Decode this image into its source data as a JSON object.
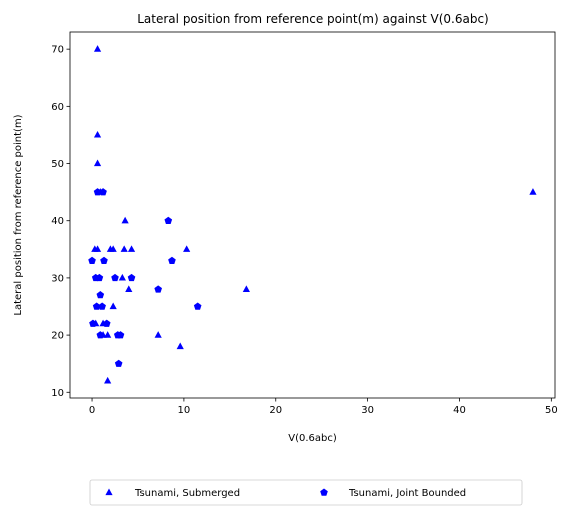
{
  "chart_data": {
    "type": "scatter",
    "title": "Lateral position from reference point(m) against V(0.6abc)",
    "xlabel": "V(0.6abc)",
    "ylabel": "Lateral position from reference point(m)",
    "xlim": [
      -2.4,
      50.4
    ],
    "ylim": [
      9.0,
      73.0
    ],
    "xticks": [
      0,
      10,
      20,
      30,
      40,
      50
    ],
    "yticks": [
      10,
      20,
      30,
      40,
      50,
      60,
      70
    ],
    "grid": false,
    "legend_position": "bottom-center, below the axes",
    "marker_color": "#0000ff",
    "series": [
      {
        "name": "Tsunami, Submerged",
        "marker": "triangle",
        "points": [
          [
            0.6,
            70
          ],
          [
            0.6,
            55
          ],
          [
            0.6,
            50
          ],
          [
            0.6,
            35
          ],
          [
            0.3,
            35
          ],
          [
            0.9,
            45
          ],
          [
            0.4,
            22
          ],
          [
            1.2,
            20
          ],
          [
            1.7,
            20
          ],
          [
            1.7,
            12
          ],
          [
            1.2,
            22
          ],
          [
            2.0,
            35
          ],
          [
            2.3,
            35
          ],
          [
            2.3,
            25
          ],
          [
            3.5,
            35
          ],
          [
            3.6,
            40
          ],
          [
            4.3,
            35
          ],
          [
            3.3,
            30
          ],
          [
            4.0,
            28
          ],
          [
            7.2,
            20
          ],
          [
            9.6,
            18
          ],
          [
            10.3,
            35
          ],
          [
            16.8,
            28
          ],
          [
            48.0,
            45
          ]
        ]
      },
      {
        "name": "Tsunami, Joint Bounded",
        "marker": "pentagon",
        "points": [
          [
            0.0,
            33
          ],
          [
            0.4,
            30
          ],
          [
            0.1,
            22
          ],
          [
            0.5,
            25
          ],
          [
            0.6,
            45
          ],
          [
            1.2,
            45
          ],
          [
            0.8,
            30
          ],
          [
            0.9,
            27
          ],
          [
            1.1,
            25
          ],
          [
            1.3,
            33
          ],
          [
            1.6,
            22
          ],
          [
            0.9,
            20
          ],
          [
            2.5,
            30
          ],
          [
            2.8,
            20
          ],
          [
            3.1,
            20
          ],
          [
            2.9,
            15
          ],
          [
            4.3,
            30
          ],
          [
            7.2,
            28
          ],
          [
            8.3,
            40
          ],
          [
            8.7,
            33
          ],
          [
            11.5,
            25
          ]
        ]
      }
    ]
  }
}
